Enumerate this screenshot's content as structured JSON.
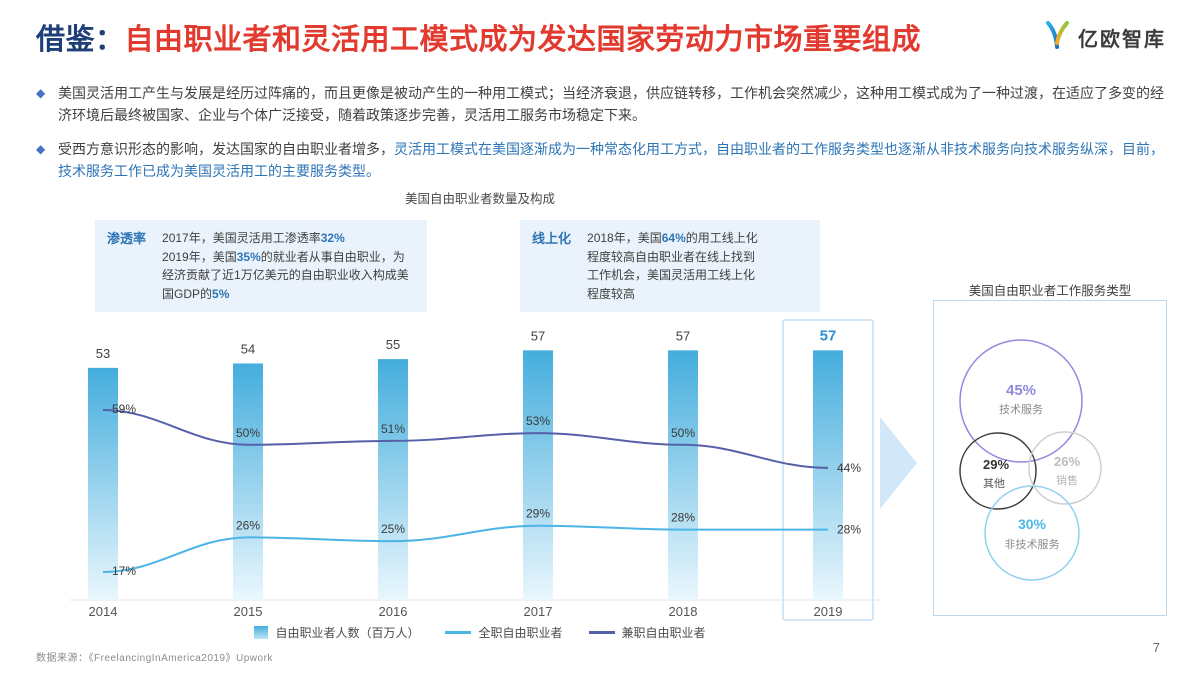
{
  "header": {
    "title_prefix": "借鉴：",
    "title_main": "自由职业者和灵活用工模式成为发达国家劳动力市场重要组成",
    "logo_text": "亿欧智库",
    "bullet_icon": "◆"
  },
  "colors": {
    "title_navy": "#1e3f77",
    "title_red": "#e23a2e",
    "accent_blue": "#2e75b6",
    "bullet_diamond": "#4472c4",
    "callout_bg": "#eaf3fb",
    "highlight_box_border": "#a9cfec",
    "highlight_value": "#2e8fd0",
    "venn_purple": "#8f8ade",
    "venn_dark": "#3f3f3f",
    "venn_gray": "#cccccc",
    "venn_lightblue": "#8fd2ef"
  },
  "bullets": [
    {
      "segments": [
        {
          "t": "美国灵活用工产生与发展是经历过阵痛的，而且更像是被动产生的一种用工模式；当经济衰退，供应链转移，工作机会突然减少，这种用工模式成为了一种过渡，在适应了多变的经济环境后最终被国家、企业与个体广泛接受，随着政策逐步完善，灵活用工服务市场稳定下来。"
        }
      ]
    },
    {
      "segments": [
        {
          "t": "受西方意识形态的影响，发达国家的自由职业者增多，"
        },
        {
          "t": "灵活用工模式在美国逐渐成为一种常态化用工方式，自由职业者的工作服务类型也逐渐从非技术服务向技术服务纵深，目前，技术服务工作已成为美国灵活用工的主要服务类型。",
          "h": true
        }
      ]
    }
  ],
  "callouts": [
    {
      "label": "渗透率",
      "segments": [
        {
          "t": "2017年，美国灵活用工渗透率"
        },
        {
          "t": "32%",
          "h": true
        },
        {
          "br": true
        },
        {
          "t": "2019年，美国"
        },
        {
          "t": "35%",
          "h": true
        },
        {
          "t": "的就业者从事自由职业，为经济贡献了近1万亿美元的自由职业收入构成美国GDP的"
        },
        {
          "t": "5%",
          "h": true
        }
      ]
    },
    {
      "label": "线上化",
      "segments": [
        {
          "t": "2018年，美国"
        },
        {
          "t": "64%",
          "h": true
        },
        {
          "t": "的用工线上化程度较高自由职业者在线上找到工作机会，美国灵活用工线上化程度较高"
        }
      ]
    }
  ],
  "chart_data": [
    {
      "type": "bar",
      "title": "美国自由职业者数量及构成",
      "categories": [
        "2014",
        "2015",
        "2016",
        "2017",
        "2018",
        "2019"
      ],
      "bar_series": {
        "name": "自由职业者人数（百万人）",
        "values": [
          53,
          54,
          55,
          57,
          57,
          57
        ],
        "unit": "百万人",
        "color_top": "#44addd",
        "color_bottom": "#eaf7fd"
      },
      "line_series": [
        {
          "name": "全职自由职业者",
          "values": [
            17,
            26,
            25,
            29,
            28,
            28
          ],
          "unit": "%",
          "color": "#4cb5e8"
        },
        {
          "name": "兼职自由职业者",
          "values": [
            59,
            50,
            51,
            53,
            50,
            44
          ],
          "unit": "%",
          "color": "#5560a8"
        }
      ],
      "highlight_category": "2019",
      "highlight_index": 5,
      "grid": false,
      "legend_position": "bottom"
    },
    {
      "type": "venn",
      "title": "美国自由职业者工作服务类型",
      "slices": [
        {
          "label": "技术服务",
          "value": 45,
          "display": "45%"
        },
        {
          "label": "其他",
          "value": 29,
          "display": "29%"
        },
        {
          "label": "销售",
          "value": 26,
          "display": "26%"
        },
        {
          "label": "非技术服务",
          "value": 30,
          "display": "30%"
        }
      ]
    }
  ],
  "footer": {
    "source": "数据来源：《FreelancingInAmerica2019》Upwork",
    "page_number": "7"
  }
}
